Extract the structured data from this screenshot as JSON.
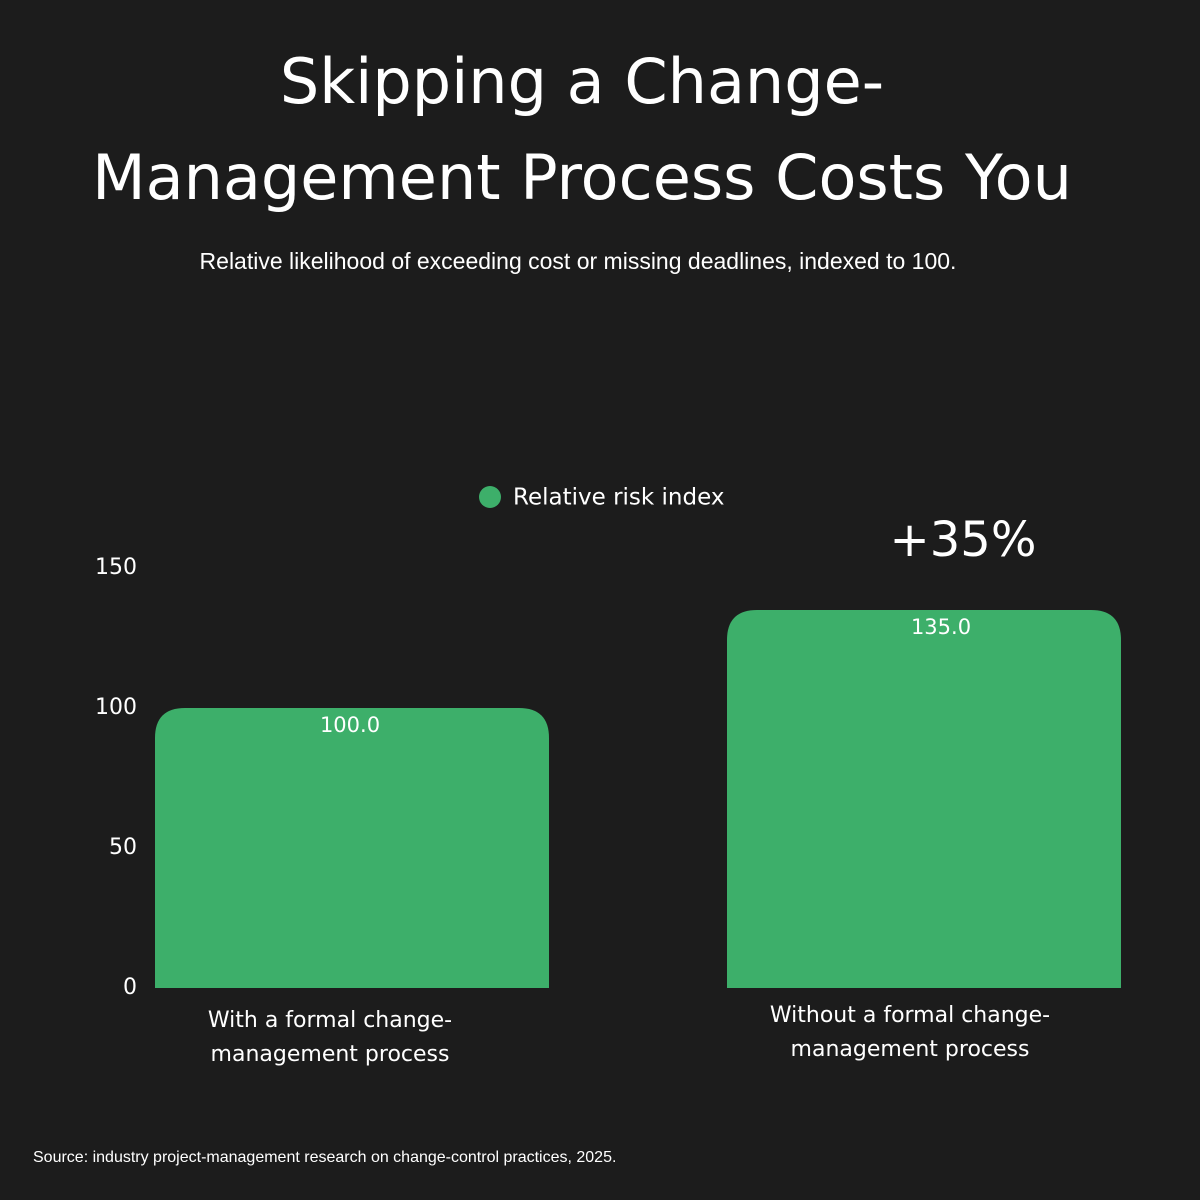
{
  "chart_data": {
    "type": "bar",
    "title": [
      "Skipping a Change-",
      "Management Process Costs You"
    ],
    "subtitle": "Relative likelihood of exceeding cost or missing deadlines, indexed to 100.",
    "categories": [
      [
        "With a formal change-",
        "management process"
      ],
      [
        "Without a formal change-",
        "management process"
      ]
    ],
    "series": [
      {
        "name": "Relative risk index",
        "color": "#3daf6a",
        "values": [
          100,
          135
        ],
        "value_labels": [
          "100.0",
          "135.0"
        ]
      }
    ],
    "ylim": [
      0,
      150
    ],
    "yticks": [
      0,
      50,
      100,
      150
    ],
    "grid": false,
    "annotation": "+35%",
    "source": "Source: industry project-management research on change-control practices, 2025."
  }
}
